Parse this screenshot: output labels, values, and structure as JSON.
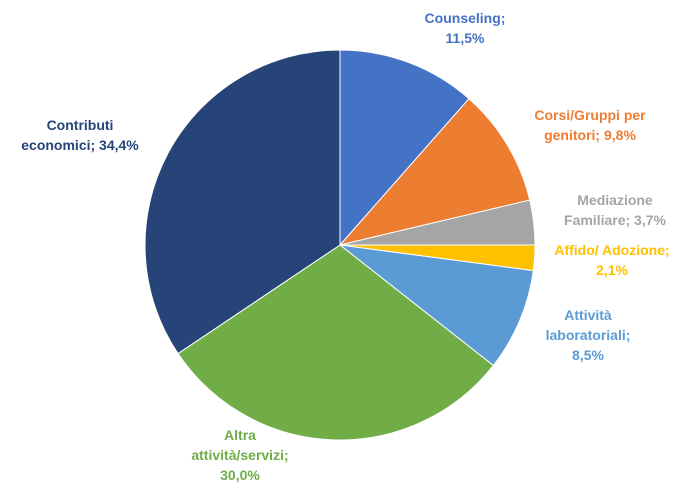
{
  "chart_data": {
    "type": "pie",
    "categories": [
      "Counseling;",
      "Corsi/Gruppi per genitori;",
      "Mediazione Familiare;",
      "Affido/ Adozione;",
      "Attività laboratoriali;",
      "Altra attività/servizi;",
      "Contributi economici;"
    ],
    "values": [
      11.5,
      9.8,
      3.7,
      2.1,
      8.5,
      30.0,
      34.4
    ],
    "value_labels": [
      "11,5%",
      "9,8%",
      "3,7%",
      "2,1%",
      "8,5%",
      "30,0%",
      "34,4%"
    ],
    "colors": [
      "#4472c4",
      "#ed7d31",
      "#a5a5a5",
      "#ffc000",
      "#5b9bd5",
      "#70ad47",
      "#264478"
    ]
  }
}
